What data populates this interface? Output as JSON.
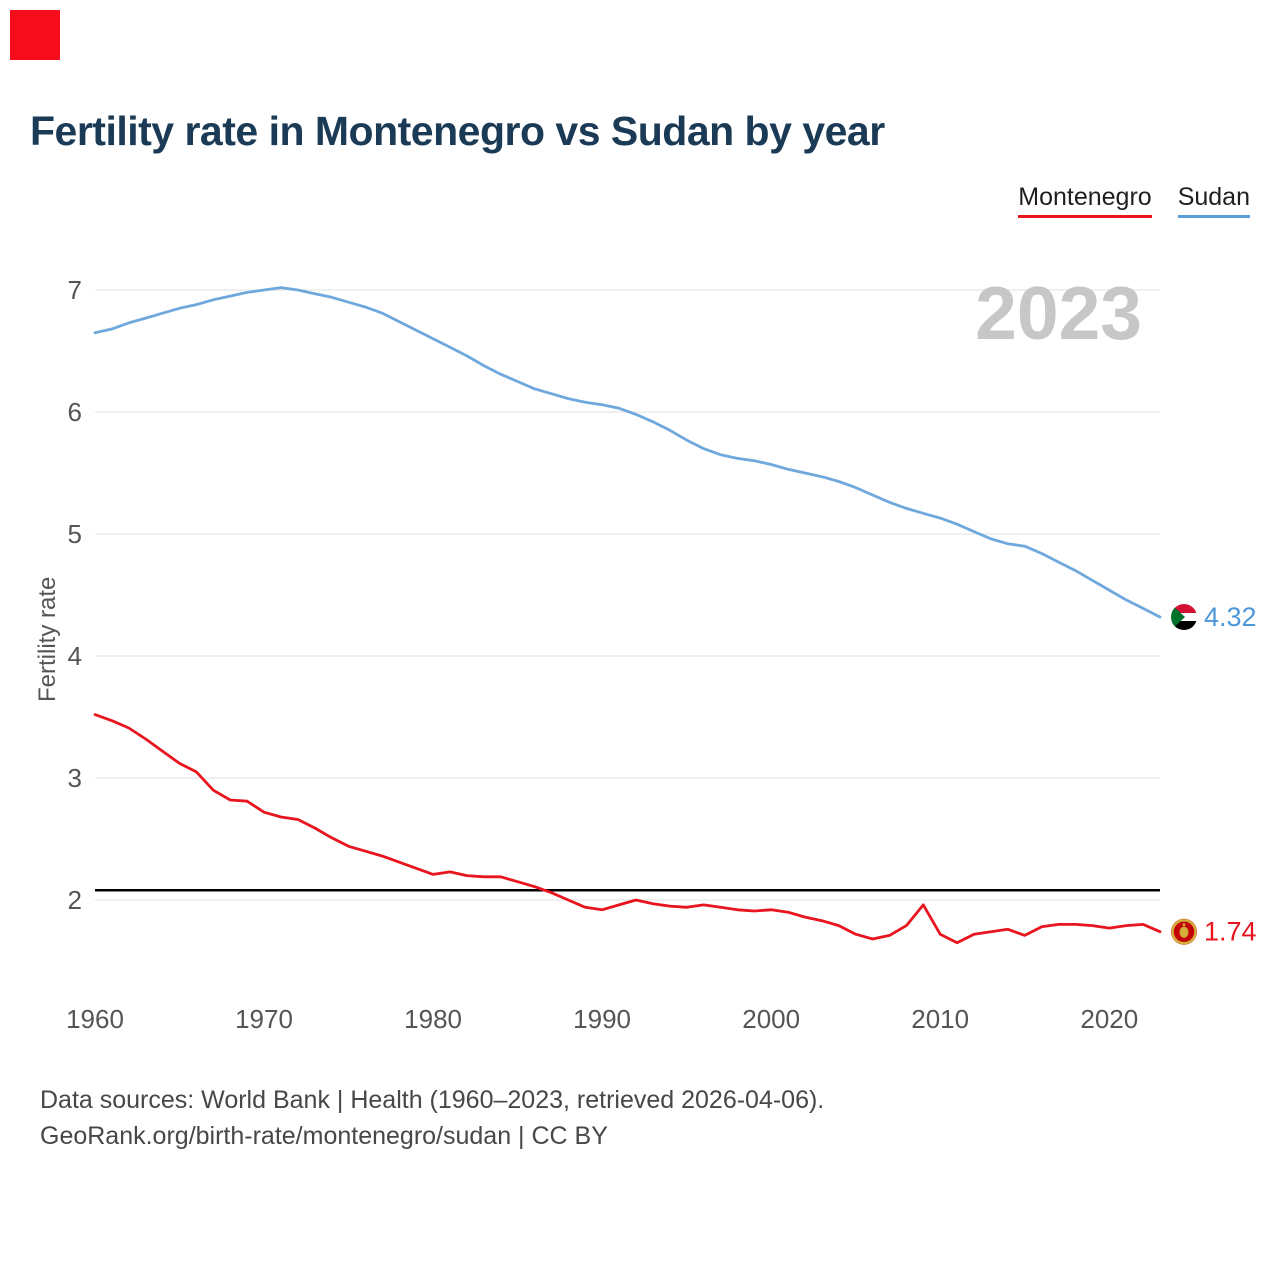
{
  "branding": {
    "logo_color": "#f60d1d"
  },
  "header": {
    "title": "Fertility rate in Montenegro vs Sudan by year"
  },
  "legend": {
    "items": [
      {
        "label": "Montenegro",
        "color": "#e8141e"
      },
      {
        "label": "Sudan",
        "color": "#5b9fd8"
      }
    ]
  },
  "watermark": "2023",
  "footer": {
    "line1": "Data sources: World Bank | Health (1960–2023, retrieved 2026-04-06).",
    "line2": "GeoRank.org/birth-rate/montenegro/sudan | CC BY"
  },
  "chart_data": {
    "type": "line",
    "title": "Fertility rate in Montenegro vs Sudan by year",
    "xlabel": "",
    "ylabel": "Fertility rate",
    "xlim": [
      1960,
      2023
    ],
    "ylim": [
      1.5,
      7.15
    ],
    "x_ticks": [
      1960,
      1970,
      1980,
      1990,
      2000,
      2010,
      2020
    ],
    "y_ticks": [
      2,
      3,
      4,
      5,
      6,
      7
    ],
    "grid": true,
    "legend_position": "top-right",
    "reference_line": {
      "value": 2.08,
      "color": "#000000"
    },
    "x": [
      1960,
      1961,
      1962,
      1963,
      1964,
      1965,
      1966,
      1967,
      1968,
      1969,
      1970,
      1971,
      1972,
      1973,
      1974,
      1975,
      1976,
      1977,
      1978,
      1979,
      1980,
      1981,
      1982,
      1983,
      1984,
      1985,
      1986,
      1987,
      1988,
      1989,
      1990,
      1991,
      1992,
      1993,
      1994,
      1995,
      1996,
      1997,
      1998,
      1999,
      2000,
      2001,
      2002,
      2003,
      2004,
      2005,
      2006,
      2007,
      2008,
      2009,
      2010,
      2011,
      2012,
      2013,
      2014,
      2015,
      2016,
      2017,
      2018,
      2019,
      2020,
      2021,
      2022,
      2023
    ],
    "series": [
      {
        "name": "Montenegro",
        "color": "#e8141e",
        "label_color": "#e8141e",
        "end_label": "1.74",
        "flag_icon": "montenegro-flag-icon",
        "values": [
          3.52,
          3.47,
          3.41,
          3.32,
          3.22,
          3.12,
          3.05,
          2.9,
          2.82,
          2.81,
          2.72,
          2.68,
          2.66,
          2.59,
          2.51,
          2.44,
          2.4,
          2.36,
          2.31,
          2.26,
          2.21,
          2.23,
          2.2,
          2.19,
          2.19,
          2.15,
          2.11,
          2.06,
          2.0,
          1.94,
          1.92,
          1.96,
          2.0,
          1.97,
          1.95,
          1.94,
          1.96,
          1.94,
          1.92,
          1.91,
          1.92,
          1.9,
          1.86,
          1.83,
          1.79,
          1.72,
          1.68,
          1.71,
          1.79,
          1.96,
          1.72,
          1.65,
          1.72,
          1.74,
          1.76,
          1.71,
          1.78,
          1.8,
          1.8,
          1.79,
          1.77,
          1.79,
          1.8,
          1.74
        ]
      },
      {
        "name": "Sudan",
        "color": "#6fa8dc",
        "label_color": "#4d97d8",
        "end_label": "4.32",
        "flag_icon": "sudan-flag-icon",
        "values": [
          6.65,
          6.68,
          6.73,
          6.77,
          6.81,
          6.85,
          6.88,
          6.92,
          6.95,
          6.98,
          7.0,
          7.02,
          7.0,
          6.97,
          6.94,
          6.9,
          6.86,
          6.81,
          6.74,
          6.67,
          6.6,
          6.53,
          6.46,
          6.38,
          6.31,
          6.25,
          6.19,
          6.15,
          6.11,
          6.08,
          6.06,
          6.03,
          5.98,
          5.92,
          5.85,
          5.77,
          5.7,
          5.65,
          5.62,
          5.6,
          5.57,
          5.53,
          5.5,
          5.47,
          5.43,
          5.38,
          5.32,
          5.26,
          5.21,
          5.17,
          5.13,
          5.08,
          5.02,
          4.96,
          4.92,
          4.9,
          4.84,
          4.77,
          4.7,
          4.62,
          4.54,
          4.46,
          4.39,
          4.32
        ]
      }
    ]
  }
}
